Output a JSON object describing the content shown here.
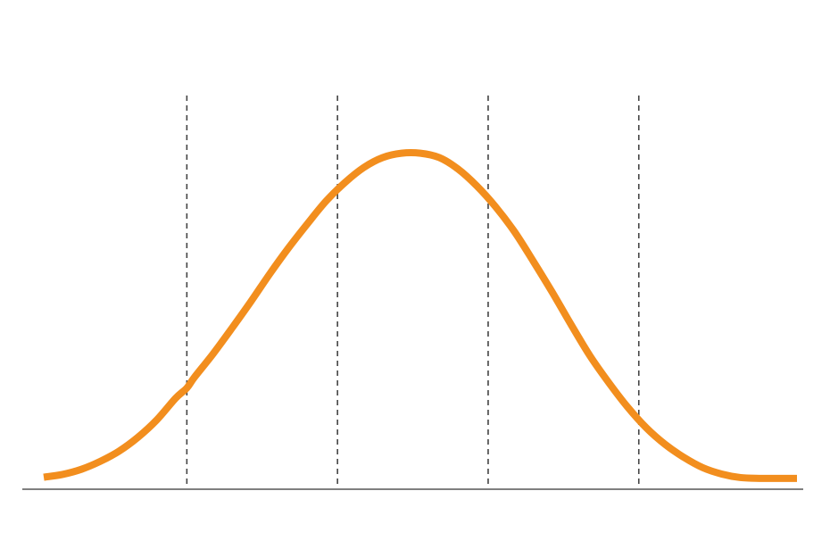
{
  "chart_data": {
    "type": "line",
    "title": "",
    "xlabel": "",
    "ylabel": "",
    "grid": false,
    "legend": "none",
    "xlim": [
      0,
      100
    ],
    "ylim": [
      0,
      100
    ],
    "series": [
      {
        "color": "#F28E1E",
        "x": [
          0,
          2.5,
          5,
          7.5,
          10,
          12.5,
          15,
          17.5,
          19,
          20,
          22.5,
          25,
          27.5,
          30,
          32.5,
          35,
          37.5,
          40,
          42.5,
          45,
          47.5,
          50,
          52.5,
          55,
          57.5,
          60,
          62.5,
          65,
          67.5,
          70,
          72.5,
          75,
          77.5,
          80,
          82.5,
          85,
          87.5,
          90,
          92.5,
          95,
          97.5,
          100
        ],
        "values": [
          2.6,
          3.3,
          4.6,
          6.6,
          9.2,
          12.7,
          17.1,
          22.6,
          25.2,
          27.9,
          33.9,
          40.4,
          47.1,
          54.1,
          60.7,
          66.8,
          72.6,
          77.3,
          81.1,
          83.6,
          84.7,
          84.7,
          83.6,
          80.7,
          76.4,
          71.1,
          64.8,
          57.3,
          49.5,
          41.3,
          33.4,
          26.6,
          20.4,
          15.1,
          10.9,
          7.6,
          5.0,
          3.4,
          2.5,
          2.3,
          2.3,
          2.3
        ]
      }
    ],
    "reference_lines_x": [
      19,
      39,
      59,
      79
    ]
  }
}
